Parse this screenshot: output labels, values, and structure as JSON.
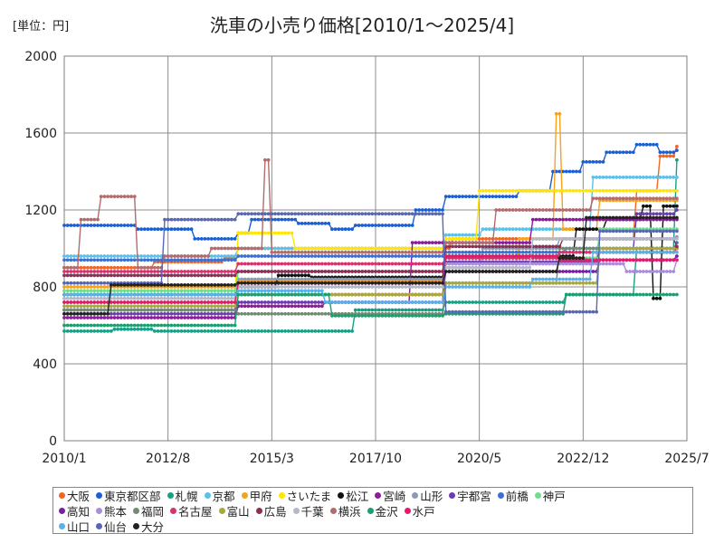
{
  "chart_data": {
    "type": "line",
    "title": "洗車の小売り価格[2010/1～2025/4]",
    "unit_label": "[単位：円]",
    "xlabel": "",
    "ylabel": "",
    "ylim": [
      0,
      2000
    ],
    "yticks": [
      "0",
      "400",
      "800",
      "1200",
      "1600",
      "2000"
    ],
    "ytick_values": [
      0,
      400,
      800,
      1200,
      1600,
      2000
    ],
    "xlim": [
      2010.0,
      2025.5
    ],
    "xticks": [
      "2010/1",
      "2012/8",
      "2015/3",
      "2017/10",
      "2020/5",
      "2022/12",
      "2025/7"
    ],
    "xtick_values": [
      2010.0,
      2012.583,
      2015.167,
      2017.75,
      2020.333,
      2022.917,
      2025.5
    ],
    "grid": true,
    "legend_position": "bottom",
    "series": [
      {
        "name": "大阪",
        "color": "#f26522",
        "points": [
          [
            2010.0,
            900
          ],
          [
            2012.2,
            930
          ],
          [
            2014.0,
            950
          ],
          [
            2014.3,
            1000
          ],
          [
            2019.6,
            1050
          ],
          [
            2024.2,
            1300
          ],
          [
            2024.8,
            1480
          ],
          [
            2025.25,
            1530
          ]
        ]
      },
      {
        "name": "東京都区部",
        "color": "#1a5fd6",
        "points": [
          [
            2010.0,
            1120
          ],
          [
            2011.8,
            1100
          ],
          [
            2013.2,
            1050
          ],
          [
            2014.3,
            1080
          ],
          [
            2014.6,
            1150
          ],
          [
            2015.8,
            1130
          ],
          [
            2016.6,
            1100
          ],
          [
            2017.2,
            1120
          ],
          [
            2018.7,
            1200
          ],
          [
            2019.5,
            1270
          ],
          [
            2021.3,
            1300
          ],
          [
            2022.1,
            1400
          ],
          [
            2022.9,
            1450
          ],
          [
            2023.5,
            1500
          ],
          [
            2024.2,
            1540
          ],
          [
            2024.8,
            1500
          ],
          [
            2025.25,
            1510
          ]
        ]
      },
      {
        "name": "札幌",
        "color": "#16a085",
        "points": [
          [
            2010.0,
            570
          ],
          [
            2011.2,
            580
          ],
          [
            2012.2,
            570
          ],
          [
            2017.2,
            680
          ],
          [
            2019.5,
            720
          ],
          [
            2022.5,
            760
          ],
          [
            2024.2,
            1000
          ],
          [
            2025.25,
            1460
          ]
        ]
      },
      {
        "name": "京都",
        "color": "#5bc0eb",
        "points": [
          [
            2010.0,
            960
          ],
          [
            2014.3,
            1000
          ],
          [
            2019.5,
            1070
          ],
          [
            2020.4,
            1100
          ],
          [
            2023.1,
            1370
          ],
          [
            2025.25,
            1370
          ]
        ]
      },
      {
        "name": "甲府",
        "color": "#f7a21b",
        "points": [
          [
            2010.0,
            800
          ],
          [
            2014.3,
            830
          ],
          [
            2019.5,
            900
          ],
          [
            2021.3,
            1050
          ],
          [
            2022.2,
            1700
          ],
          [
            2022.4,
            1100
          ],
          [
            2023.3,
            1250
          ],
          [
            2025.25,
            1250
          ]
        ]
      },
      {
        "name": "さいたま",
        "color": "#ffe600",
        "points": [
          [
            2010.0,
            760
          ],
          [
            2014.3,
            1080
          ],
          [
            2015.7,
            1000
          ],
          [
            2019.5,
            1050
          ],
          [
            2020.3,
            1300
          ],
          [
            2025.25,
            1300
          ]
        ]
      },
      {
        "name": "松江",
        "color": "#111111",
        "points": [
          [
            2010.0,
            760
          ],
          [
            2014.3,
            800
          ],
          [
            2015.3,
            860
          ],
          [
            2016.1,
            850
          ],
          [
            2019.5,
            960
          ],
          [
            2022.7,
            1100
          ],
          [
            2023.5,
            1150
          ],
          [
            2024.4,
            1220
          ],
          [
            2024.6,
            740
          ],
          [
            2024.9,
            1220
          ],
          [
            2025.25,
            1220
          ]
        ]
      },
      {
        "name": "宮崎",
        "color": "#8e1a9c",
        "points": [
          [
            2010.0,
            640
          ],
          [
            2014.3,
            700
          ],
          [
            2016.5,
            720
          ],
          [
            2018.6,
            1030
          ],
          [
            2021.6,
            1150
          ],
          [
            2025.25,
            1150
          ]
        ]
      },
      {
        "name": "山形",
        "color": "#8a9bb5",
        "points": [
          [
            2010.0,
            720
          ],
          [
            2014.3,
            840
          ],
          [
            2019.5,
            900
          ],
          [
            2020.4,
            1000
          ],
          [
            2022.3,
            1050
          ],
          [
            2025.25,
            1060
          ]
        ]
      },
      {
        "name": "宇都宮",
        "color": "#6c3bb0",
        "points": [
          [
            2010.0,
            660
          ],
          [
            2014.3,
            720
          ],
          [
            2019.5,
            930
          ],
          [
            2023.3,
            1000
          ],
          [
            2024.2,
            1180
          ],
          [
            2025.25,
            1200
          ]
        ]
      },
      {
        "name": "前橋",
        "color": "#3d6fd1",
        "points": [
          [
            2010.0,
            940
          ],
          [
            2014.3,
            960
          ],
          [
            2019.5,
            980
          ],
          [
            2022.5,
            1000
          ],
          [
            2025.25,
            1030
          ]
        ]
      },
      {
        "name": "神戸",
        "color": "#6fe08a",
        "points": [
          [
            2010.0,
            780
          ],
          [
            2014.3,
            880
          ],
          [
            2019.5,
            950
          ],
          [
            2023.3,
            1100
          ],
          [
            2025.25,
            1100
          ]
        ]
      },
      {
        "name": "高知",
        "color": "#7a1fa2",
        "points": [
          [
            2010.0,
            680
          ],
          [
            2014.3,
            760
          ],
          [
            2019.5,
            880
          ],
          [
            2023.3,
            940
          ],
          [
            2025.25,
            960
          ]
        ]
      },
      {
        "name": "熊本",
        "color": "#a98ee0",
        "points": [
          [
            2010.0,
            860
          ],
          [
            2014.3,
            880
          ],
          [
            2019.5,
            920
          ],
          [
            2024.0,
            880
          ],
          [
            2025.25,
            940
          ]
        ]
      },
      {
        "name": "福岡",
        "color": "#708d72",
        "points": [
          [
            2010.0,
            680
          ],
          [
            2014.3,
            660
          ],
          [
            2019.5,
            820
          ],
          [
            2022.3,
            1000
          ],
          [
            2025.25,
            1000
          ]
        ]
      },
      {
        "name": "名古屋",
        "color": "#d6336c",
        "points": [
          [
            2010.0,
            880
          ],
          [
            2014.3,
            920
          ],
          [
            2019.5,
            950
          ],
          [
            2022.3,
            980
          ],
          [
            2025.25,
            1000
          ]
        ]
      },
      {
        "name": "富山",
        "color": "#a9a83b",
        "points": [
          [
            2010.0,
            700
          ],
          [
            2014.3,
            760
          ],
          [
            2019.5,
            820
          ],
          [
            2023.3,
            1000
          ],
          [
            2025.25,
            1000
          ]
        ]
      },
      {
        "name": "広島",
        "color": "#8c2f55",
        "points": [
          [
            2010.0,
            860
          ],
          [
            2014.3,
            880
          ],
          [
            2019.5,
            1010
          ],
          [
            2022.4,
            1050
          ],
          [
            2025.25,
            1010
          ]
        ]
      },
      {
        "name": "千葉",
        "color": "#b3b9c6",
        "points": [
          [
            2010.0,
            740
          ],
          [
            2014.3,
            800
          ],
          [
            2019.5,
            900
          ],
          [
            2021.6,
            1050
          ],
          [
            2025.25,
            1050
          ]
        ]
      },
      {
        "name": "横浜",
        "color": "#b36b6b",
        "points": [
          [
            2010.0,
            900
          ],
          [
            2010.4,
            1150
          ],
          [
            2010.9,
            1270
          ],
          [
            2011.7,
            1270
          ],
          [
            2011.8,
            900
          ],
          [
            2012.5,
            960
          ],
          [
            2013.6,
            1000
          ],
          [
            2014.3,
            1000
          ],
          [
            2015.0,
            1460
          ],
          [
            2015.1,
            980
          ],
          [
            2019.5,
            1030
          ],
          [
            2020.7,
            1200
          ],
          [
            2023.1,
            1260
          ],
          [
            2025.25,
            1260
          ]
        ]
      },
      {
        "name": "金沢",
        "color": "#1e9e6e",
        "points": [
          [
            2010.0,
            600
          ],
          [
            2014.3,
            760
          ],
          [
            2016.6,
            650
          ],
          [
            2019.5,
            660
          ],
          [
            2022.5,
            760
          ],
          [
            2025.25,
            760
          ]
        ]
      },
      {
        "name": "水戸",
        "color": "#e21b6a",
        "points": [
          [
            2010.0,
            720
          ],
          [
            2014.3,
            820
          ],
          [
            2019.5,
            960
          ],
          [
            2022.3,
            940
          ],
          [
            2025.25,
            940
          ]
        ]
      },
      {
        "name": "山口",
        "color": "#5ab0e8",
        "points": [
          [
            2010.0,
            760
          ],
          [
            2014.3,
            780
          ],
          [
            2016.5,
            720
          ],
          [
            2019.5,
            800
          ],
          [
            2021.6,
            840
          ],
          [
            2023.1,
            980
          ],
          [
            2025.25,
            980
          ]
        ]
      },
      {
        "name": "仙台",
        "color": "#5567b5",
        "points": [
          [
            2010.0,
            820
          ],
          [
            2012.5,
            1150
          ],
          [
            2014.3,
            1180
          ],
          [
            2018.6,
            1180
          ],
          [
            2019.5,
            670
          ],
          [
            2022.5,
            670
          ],
          [
            2023.3,
            1090
          ],
          [
            2025.25,
            1090
          ]
        ]
      },
      {
        "name": "大分",
        "color": "#222222",
        "points": [
          [
            2010.0,
            660
          ],
          [
            2011.0,
            660
          ],
          [
            2011.1,
            810
          ],
          [
            2014.3,
            820
          ],
          [
            2019.5,
            880
          ],
          [
            2022.3,
            950
          ],
          [
            2023.0,
            1160
          ],
          [
            2025.25,
            1160
          ]
        ]
      }
    ]
  }
}
